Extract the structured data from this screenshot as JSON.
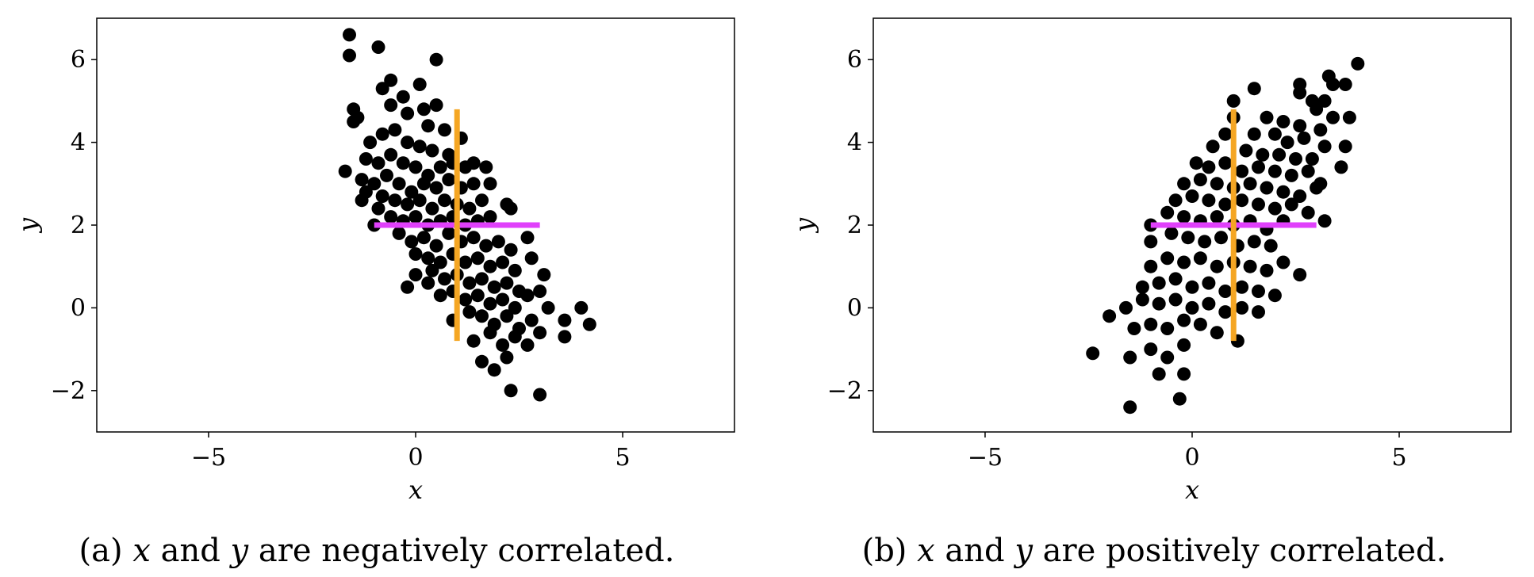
{
  "chart_data": [
    {
      "type": "scatter",
      "caption": {
        "prefix": "(a) ",
        "var1": "x",
        "and": " and ",
        "var2": "y",
        "suffix": " are negatively correlated."
      },
      "xlabel": "x",
      "ylabel": "y",
      "xlim": [
        -7.7,
        7.7
      ],
      "ylim": [
        -3,
        7
      ],
      "xticks": [
        -5,
        0,
        5
      ],
      "yticks": [
        -2,
        0,
        2,
        4,
        6
      ],
      "xtick_labels": [
        "−5",
        "0",
        "5"
      ],
      "ytick_labels": [
        "−2",
        "0",
        "2",
        "4",
        "6"
      ],
      "grid": false,
      "colors": {
        "points": "#000000",
        "horizontal_line": "#e040fb",
        "vertical_line": "#f5a623"
      },
      "lines": [
        {
          "orientation": "horizontal",
          "y": 2,
          "x_from": -1,
          "x_to": 3,
          "color": "#e040fb"
        },
        {
          "orientation": "vertical",
          "x": 1,
          "y_from": -0.8,
          "y_to": 4.8,
          "color": "#f5a623"
        }
      ],
      "points": [
        [
          -1.6,
          6.6
        ],
        [
          -1.6,
          6.1
        ],
        [
          -0.9,
          6.3
        ],
        [
          0.5,
          6.0
        ],
        [
          -0.6,
          5.5
        ],
        [
          0.1,
          5.4
        ],
        [
          -0.8,
          5.3
        ],
        [
          -0.3,
          5.1
        ],
        [
          0.5,
          4.9
        ],
        [
          -1.5,
          4.8
        ],
        [
          -1.4,
          4.6
        ],
        [
          -1.5,
          4.5
        ],
        [
          -0.6,
          4.9
        ],
        [
          -0.2,
          4.7
        ],
        [
          0.2,
          4.8
        ],
        [
          0.3,
          4.4
        ],
        [
          0.7,
          4.3
        ],
        [
          1.1,
          4.1
        ],
        [
          -1.1,
          4.0
        ],
        [
          -0.8,
          4.2
        ],
        [
          -0.5,
          4.3
        ],
        [
          -0.2,
          4.0
        ],
        [
          0.1,
          3.9
        ],
        [
          0.4,
          3.8
        ],
        [
          0.8,
          3.7
        ],
        [
          -1.2,
          3.6
        ],
        [
          -0.9,
          3.5
        ],
        [
          -0.6,
          3.7
        ],
        [
          -0.3,
          3.5
        ],
        [
          0.0,
          3.4
        ],
        [
          0.3,
          3.2
        ],
        [
          0.6,
          3.4
        ],
        [
          0.9,
          3.5
        ],
        [
          1.2,
          3.4
        ],
        [
          1.4,
          3.5
        ],
        [
          1.7,
          3.4
        ],
        [
          -1.7,
          3.3
        ],
        [
          -1.3,
          3.1
        ],
        [
          -1.0,
          3.0
        ],
        [
          -0.7,
          3.2
        ],
        [
          -0.4,
          3.0
        ],
        [
          -0.1,
          2.8
        ],
        [
          0.2,
          3.0
        ],
        [
          0.5,
          2.9
        ],
        [
          0.8,
          3.1
        ],
        [
          1.1,
          2.9
        ],
        [
          1.4,
          3.0
        ],
        [
          1.8,
          3.0
        ],
        [
          -1.2,
          2.8
        ],
        [
          -0.8,
          2.7
        ],
        [
          -0.5,
          2.6
        ],
        [
          -0.2,
          2.5
        ],
        [
          0.1,
          2.6
        ],
        [
          0.4,
          2.4
        ],
        [
          0.7,
          2.6
        ],
        [
          1.0,
          2.5
        ],
        [
          1.3,
          2.4
        ],
        [
          1.6,
          2.6
        ],
        [
          2.2,
          2.5
        ],
        [
          -1.3,
          2.6
        ],
        [
          -0.9,
          2.4
        ],
        [
          -1.0,
          2.0
        ],
        [
          -0.6,
          2.2
        ],
        [
          -0.3,
          2.1
        ],
        [
          0.0,
          2.2
        ],
        [
          0.3,
          2.0
        ],
        [
          0.6,
          2.1
        ],
        [
          0.9,
          2.2
        ],
        [
          1.2,
          2.0
        ],
        [
          1.5,
          2.1
        ],
        [
          1.8,
          2.2
        ],
        [
          2.3,
          2.4
        ],
        [
          2.7,
          1.7
        ],
        [
          -0.4,
          1.8
        ],
        [
          -0.1,
          1.6
        ],
        [
          0.2,
          1.7
        ],
        [
          0.5,
          1.5
        ],
        [
          0.8,
          1.8
        ],
        [
          1.1,
          1.6
        ],
        [
          1.4,
          1.7
        ],
        [
          1.7,
          1.5
        ],
        [
          2.0,
          1.6
        ],
        [
          2.3,
          1.4
        ],
        [
          0.0,
          1.3
        ],
        [
          0.3,
          1.2
        ],
        [
          0.6,
          1.1
        ],
        [
          0.9,
          1.3
        ],
        [
          1.2,
          1.1
        ],
        [
          1.5,
          1.2
        ],
        [
          1.8,
          1.0
        ],
        [
          2.1,
          1.1
        ],
        [
          2.4,
          0.9
        ],
        [
          2.8,
          1.2
        ],
        [
          0.0,
          0.8
        ],
        [
          0.4,
          0.9
        ],
        [
          0.7,
          0.7
        ],
        [
          1.0,
          0.8
        ],
        [
          1.3,
          0.6
        ],
        [
          1.6,
          0.7
        ],
        [
          1.9,
          0.5
        ],
        [
          2.2,
          0.6
        ],
        [
          2.5,
          0.4
        ],
        [
          3.1,
          0.8
        ],
        [
          -0.2,
          0.5
        ],
        [
          0.3,
          0.6
        ],
        [
          0.6,
          0.3
        ],
        [
          0.9,
          0.4
        ],
        [
          1.2,
          0.2
        ],
        [
          1.5,
          0.3
        ],
        [
          1.8,
          0.1
        ],
        [
          2.1,
          0.2
        ],
        [
          2.4,
          0.0
        ],
        [
          2.7,
          0.3
        ],
        [
          3.0,
          0.4
        ],
        [
          0.9,
          -0.3
        ],
        [
          1.3,
          -0.1
        ],
        [
          1.6,
          -0.2
        ],
        [
          1.9,
          -0.4
        ],
        [
          2.2,
          -0.2
        ],
        [
          2.5,
          -0.5
        ],
        [
          2.8,
          -0.3
        ],
        [
          3.2,
          0.0
        ],
        [
          3.6,
          -0.3
        ],
        [
          4.0,
          0.0
        ],
        [
          4.2,
          -0.4
        ],
        [
          1.4,
          -0.8
        ],
        [
          1.8,
          -0.6
        ],
        [
          2.1,
          -0.9
        ],
        [
          2.4,
          -0.7
        ],
        [
          2.7,
          -0.9
        ],
        [
          3.0,
          -0.6
        ],
        [
          3.6,
          -0.7
        ],
        [
          1.6,
          -1.3
        ],
        [
          1.9,
          -1.5
        ],
        [
          2.2,
          -1.2
        ],
        [
          2.3,
          -2.0
        ],
        [
          3.0,
          -2.1
        ]
      ]
    },
    {
      "type": "scatter",
      "caption": {
        "prefix": "(b) ",
        "var1": "x",
        "and": " and ",
        "var2": "y",
        "suffix": " are positively correlated."
      },
      "xlabel": "x",
      "ylabel": "y",
      "xlim": [
        -7.7,
        7.7
      ],
      "ylim": [
        -3,
        7
      ],
      "xticks": [
        -5,
        0,
        5
      ],
      "yticks": [
        -2,
        0,
        2,
        4,
        6
      ],
      "xtick_labels": [
        "−5",
        "0",
        "5"
      ],
      "ytick_labels": [
        "−2",
        "0",
        "2",
        "4",
        "6"
      ],
      "grid": false,
      "colors": {
        "points": "#000000",
        "horizontal_line": "#e040fb",
        "vertical_line": "#f5a623"
      },
      "lines": [
        {
          "orientation": "horizontal",
          "y": 2,
          "x_from": -1,
          "x_to": 3,
          "color": "#e040fb"
        },
        {
          "orientation": "vertical",
          "x": 1,
          "y_from": -0.8,
          "y_to": 4.8,
          "color": "#f5a623"
        }
      ],
      "points": [
        [
          4.0,
          5.9
        ],
        [
          3.3,
          5.6
        ],
        [
          3.4,
          5.4
        ],
        [
          3.7,
          5.4
        ],
        [
          2.6,
          5.4
        ],
        [
          2.9,
          5.0
        ],
        [
          3.2,
          5.0
        ],
        [
          1.0,
          5.0
        ],
        [
          1.5,
          5.3
        ],
        [
          2.6,
          5.2
        ],
        [
          3.0,
          4.8
        ],
        [
          3.8,
          4.6
        ],
        [
          3.4,
          4.6
        ],
        [
          1.0,
          4.6
        ],
        [
          1.8,
          4.6
        ],
        [
          2.2,
          4.5
        ],
        [
          2.6,
          4.4
        ],
        [
          3.1,
          4.3
        ],
        [
          1.5,
          4.2
        ],
        [
          2.0,
          4.2
        ],
        [
          2.3,
          4.0
        ],
        [
          2.7,
          4.1
        ],
        [
          3.2,
          3.9
        ],
        [
          3.7,
          3.9
        ],
        [
          0.5,
          3.9
        ],
        [
          0.8,
          4.2
        ],
        [
          1.3,
          3.8
        ],
        [
          1.7,
          3.7
        ],
        [
          2.1,
          3.7
        ],
        [
          2.5,
          3.6
        ],
        [
          2.9,
          3.6
        ],
        [
          3.6,
          3.4
        ],
        [
          0.1,
          3.5
        ],
        [
          0.4,
          3.4
        ],
        [
          0.8,
          3.5
        ],
        [
          1.2,
          3.3
        ],
        [
          1.6,
          3.4
        ],
        [
          2.0,
          3.3
        ],
        [
          2.4,
          3.2
        ],
        [
          2.8,
          3.3
        ],
        [
          3.1,
          3.0
        ],
        [
          -0.2,
          3.0
        ],
        [
          0.2,
          3.1
        ],
        [
          0.6,
          3.0
        ],
        [
          1.0,
          2.9
        ],
        [
          1.4,
          3.0
        ],
        [
          1.8,
          2.9
        ],
        [
          2.2,
          2.8
        ],
        [
          2.6,
          2.7
        ],
        [
          3.0,
          2.9
        ],
        [
          -0.4,
          2.6
        ],
        [
          0.0,
          2.7
        ],
        [
          0.4,
          2.6
        ],
        [
          0.8,
          2.5
        ],
        [
          1.2,
          2.6
        ],
        [
          1.6,
          2.5
        ],
        [
          2.0,
          2.4
        ],
        [
          2.4,
          2.5
        ],
        [
          2.8,
          2.3
        ],
        [
          -1.0,
          2.0
        ],
        [
          -0.6,
          2.3
        ],
        [
          -0.2,
          2.2
        ],
        [
          0.2,
          2.1
        ],
        [
          0.6,
          2.2
        ],
        [
          1.0,
          2.0
        ],
        [
          1.4,
          2.1
        ],
        [
          1.8,
          1.9
        ],
        [
          2.2,
          2.1
        ],
        [
          3.2,
          2.1
        ],
        [
          -1.0,
          1.6
        ],
        [
          -0.5,
          1.8
        ],
        [
          -0.1,
          1.7
        ],
        [
          0.3,
          1.6
        ],
        [
          0.7,
          1.7
        ],
        [
          1.1,
          1.5
        ],
        [
          1.5,
          1.6
        ],
        [
          1.9,
          1.5
        ],
        [
          -1.0,
          1.0
        ],
        [
          -0.6,
          1.2
        ],
        [
          -0.2,
          1.1
        ],
        [
          0.2,
          1.2
        ],
        [
          0.6,
          1.0
        ],
        [
          1.0,
          1.1
        ],
        [
          1.4,
          1.0
        ],
        [
          1.8,
          0.9
        ],
        [
          2.2,
          1.1
        ],
        [
          2.6,
          0.8
        ],
        [
          -1.2,
          0.5
        ],
        [
          -0.8,
          0.6
        ],
        [
          -0.4,
          0.7
        ],
        [
          0.0,
          0.5
        ],
        [
          0.4,
          0.6
        ],
        [
          0.8,
          0.4
        ],
        [
          1.2,
          0.5
        ],
        [
          1.6,
          0.4
        ],
        [
          2.0,
          0.3
        ],
        [
          -1.6,
          0.0
        ],
        [
          -1.2,
          0.2
        ],
        [
          -0.8,
          0.1
        ],
        [
          -0.4,
          0.2
        ],
        [
          0.0,
          0.0
        ],
        [
          0.4,
          0.1
        ],
        [
          0.8,
          -0.1
        ],
        [
          1.2,
          0.0
        ],
        [
          1.6,
          -0.1
        ],
        [
          -2.0,
          -0.2
        ],
        [
          -1.4,
          -0.5
        ],
        [
          -1.0,
          -0.4
        ],
        [
          -0.6,
          -0.5
        ],
        [
          -0.2,
          -0.3
        ],
        [
          0.2,
          -0.4
        ],
        [
          0.6,
          -0.6
        ],
        [
          1.1,
          -0.8
        ],
        [
          -2.4,
          -1.1
        ],
        [
          -1.5,
          -1.2
        ],
        [
          -1.0,
          -1.0
        ],
        [
          -0.6,
          -1.2
        ],
        [
          -0.2,
          -0.9
        ],
        [
          -0.8,
          -1.6
        ],
        [
          -0.2,
          -1.6
        ],
        [
          -1.5,
          -2.4
        ],
        [
          -0.3,
          -2.2
        ]
      ]
    }
  ]
}
